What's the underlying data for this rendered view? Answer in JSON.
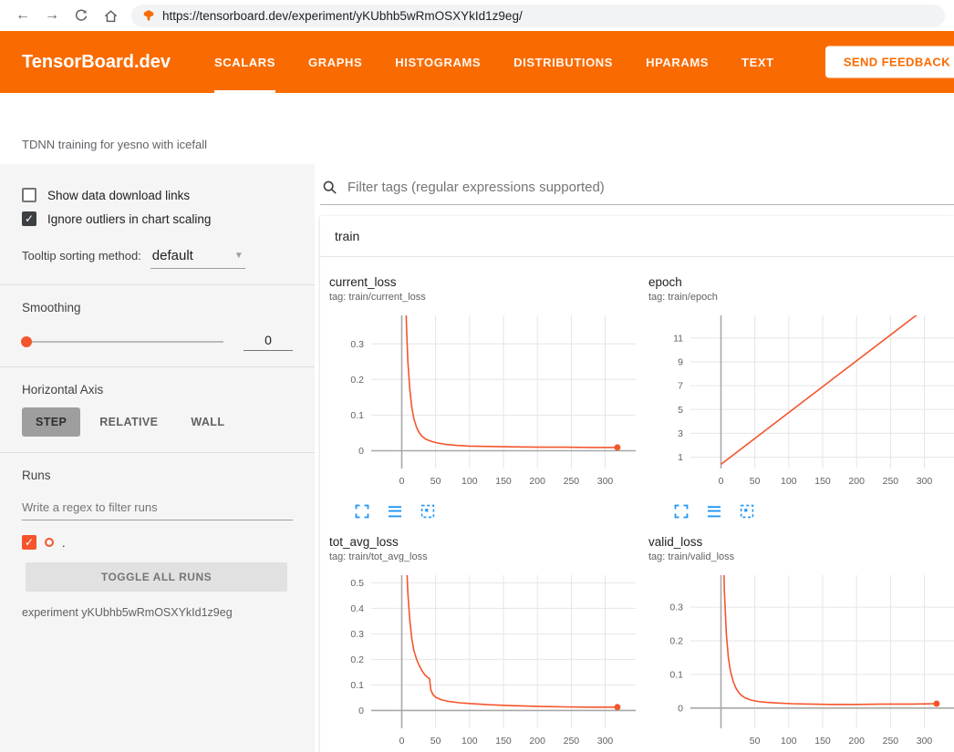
{
  "browser": {
    "url": "https://tensorboard.dev/experiment/yKUbhb5wRmOSXYkId1z9eg/"
  },
  "header": {
    "logo": "TensorBoard.dev",
    "tabs": [
      {
        "label": "SCALARS",
        "active": true
      },
      {
        "label": "GRAPHS",
        "active": false
      },
      {
        "label": "HISTOGRAMS",
        "active": false
      },
      {
        "label": "DISTRIBUTIONS",
        "active": false
      },
      {
        "label": "HPARAMS",
        "active": false
      },
      {
        "label": "TEXT",
        "active": false
      }
    ],
    "feedback_button": "SEND FEEDBACK"
  },
  "experiment_title": "TDNN training for yesno with icefall",
  "sidebar": {
    "show_download_label": "Show data download links",
    "ignore_outliers_label": "Ignore outliers in chart scaling",
    "tooltip_sorting_label": "Tooltip sorting method:",
    "tooltip_sorting_value": "default",
    "smoothing_label": "Smoothing",
    "smoothing_value": "0",
    "horizontal_axis_label": "Horizontal Axis",
    "axis_buttons": [
      {
        "label": "STEP",
        "active": true
      },
      {
        "label": "RELATIVE",
        "active": false
      },
      {
        "label": "WALL",
        "active": false
      }
    ],
    "runs_label": "Runs",
    "runs_filter_placeholder": "Write a regex to filter runs",
    "run_item_label": ".",
    "toggle_all_label": "TOGGLE ALL RUNS",
    "experiment_caption": "experiment yKUbhb5wRmOSXYkId1z9eg"
  },
  "main": {
    "filter_placeholder": "Filter tags (regular expressions supported)",
    "group_title": "train"
  },
  "colors": {
    "header_orange": "#f96b00",
    "run_orange": "#f4552c",
    "icon_blue": "#2096f3",
    "grid": "#e6e6e6",
    "axis": "#a8a8a8",
    "tick_label": "#616161"
  },
  "chart_data": [
    {
      "type": "line",
      "title": "current_loss",
      "subtitle": "tag: train/current_loss",
      "xlim": [
        -45,
        345
      ],
      "ylim": [
        -0.05,
        0.38
      ],
      "xticks": [
        0,
        50,
        100,
        150,
        200,
        250,
        300
      ],
      "yticks": [
        0,
        0.1,
        0.2,
        0.3
      ],
      "end_dot": true,
      "series": [
        {
          "name": ".",
          "x": [
            1,
            3,
            5,
            7,
            9,
            12,
            15,
            18,
            22,
            26,
            30,
            36,
            44,
            52,
            64,
            80,
            100,
            130,
            160,
            200,
            240,
            280,
            318
          ],
          "y": [
            1.5,
            0.8,
            0.5,
            0.35,
            0.25,
            0.17,
            0.12,
            0.09,
            0.065,
            0.05,
            0.04,
            0.032,
            0.026,
            0.022,
            0.018,
            0.015,
            0.013,
            0.012,
            0.011,
            0.01,
            0.01,
            0.009,
            0.009
          ]
        }
      ]
    },
    {
      "type": "line",
      "title": "epoch",
      "subtitle": "tag: train/epoch",
      "xlim": [
        -45,
        345
      ],
      "ylim": [
        0.05,
        12.9
      ],
      "xticks": [
        0,
        50,
        100,
        150,
        200,
        250,
        300
      ],
      "yticks": [
        1,
        3,
        5,
        7,
        9,
        11
      ],
      "end_dot": false,
      "series": [
        {
          "name": ".",
          "x": [
            0,
            320
          ],
          "y": [
            0.4,
            14.3
          ]
        }
      ]
    },
    {
      "type": "line",
      "title": "tot_avg_loss",
      "subtitle": "tag: train/tot_avg_loss",
      "xlim": [
        -45,
        345
      ],
      "ylim": [
        -0.07,
        0.53
      ],
      "xticks": [
        0,
        50,
        100,
        150,
        200,
        250,
        300
      ],
      "yticks": [
        0,
        0.1,
        0.2,
        0.3,
        0.4,
        0.5
      ],
      "end_dot": true,
      "series": [
        {
          "name": ".",
          "x": [
            1,
            3,
            5,
            7,
            9,
            12,
            15,
            18,
            22,
            26,
            30,
            34,
            38,
            41,
            43,
            46,
            50,
            58,
            70,
            85,
            100,
            130,
            160,
            200,
            240,
            280,
            318
          ],
          "y": [
            1.4,
            1.0,
            0.75,
            0.58,
            0.46,
            0.35,
            0.28,
            0.235,
            0.2,
            0.175,
            0.155,
            0.14,
            0.13,
            0.125,
            0.08,
            0.062,
            0.052,
            0.042,
            0.035,
            0.03,
            0.027,
            0.022,
            0.019,
            0.016,
            0.014,
            0.013,
            0.013
          ]
        }
      ]
    },
    {
      "type": "line",
      "title": "valid_loss",
      "subtitle": "tag: train/valid_loss",
      "xlim": [
        -45,
        345
      ],
      "ylim": [
        -0.06,
        0.395
      ],
      "xticks": [
        50,
        100,
        150,
        200,
        250,
        300
      ],
      "yticks": [
        0,
        0.1,
        0.2,
        0.3
      ],
      "end_dot": true,
      "series": [
        {
          "name": ".",
          "x": [
            1,
            3,
            5,
            8,
            11,
            14,
            18,
            22,
            26,
            30,
            36,
            44,
            54,
            68,
            85,
            105,
            130,
            160,
            200,
            240,
            280,
            318
          ],
          "y": [
            1.0,
            0.55,
            0.35,
            0.22,
            0.15,
            0.11,
            0.08,
            0.06,
            0.047,
            0.038,
            0.03,
            0.024,
            0.02,
            0.017,
            0.015,
            0.013,
            0.012,
            0.011,
            0.011,
            0.012,
            0.012,
            0.013
          ]
        }
      ]
    }
  ]
}
